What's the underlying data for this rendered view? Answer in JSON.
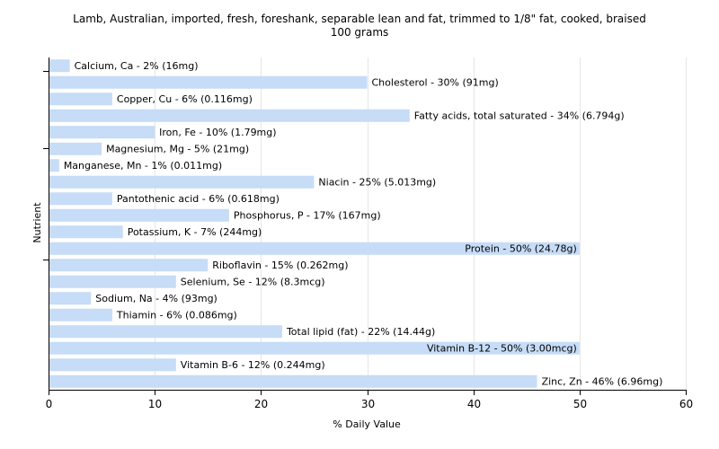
{
  "chart_data": {
    "type": "bar",
    "orientation": "horizontal",
    "title": "Lamb, Australian, imported, fresh, foreshank, separable lean and fat, trimmed to 1/8\" fat, cooked, braised",
    "subtitle": "100 grams",
    "xlabel": "% Daily Value",
    "ylabel": "Nutrient",
    "xlim": [
      0,
      60
    ],
    "x_ticks": [
      0,
      10,
      20,
      30,
      40,
      50,
      60
    ],
    "grid": true,
    "bar_color": "#c6dcf7",
    "categories": [
      "Calcium, Ca",
      "Cholesterol",
      "Copper, Cu",
      "Fatty acids, total saturated",
      "Iron, Fe",
      "Magnesium, Mg",
      "Manganese, Mn",
      "Niacin",
      "Pantothenic acid",
      "Phosphorus, P",
      "Potassium, K",
      "Protein",
      "Riboflavin",
      "Selenium, Se",
      "Sodium, Na",
      "Thiamin",
      "Total lipid (fat)",
      "Vitamin B-12",
      "Vitamin B-6",
      "Zinc, Zn"
    ],
    "values": [
      2,
      30,
      6,
      34,
      10,
      5,
      1,
      25,
      6,
      17,
      7,
      50,
      15,
      12,
      4,
      6,
      22,
      50,
      12,
      46
    ],
    "labels": [
      "Calcium, Ca - 2% (16mg)",
      "Cholesterol - 30% (91mg)",
      "Copper, Cu - 6% (0.116mg)",
      "Fatty acids, total saturated - 34% (6.794g)",
      "Iron, Fe - 10% (1.79mg)",
      "Magnesium, Mg - 5% (21mg)",
      "Manganese, Mn - 1% (0.011mg)",
      "Niacin - 25% (5.013mg)",
      "Pantothenic acid - 6% (0.618mg)",
      "Phosphorus, P - 17% (167mg)",
      "Potassium, K - 7% (244mg)",
      "Protein - 50% (24.78g)",
      "Riboflavin - 15% (0.262mg)",
      "Selenium, Se - 12% (8.3mcg)",
      "Sodium, Na - 4% (93mg)",
      "Thiamin - 6% (0.086mg)",
      "Total lipid (fat) - 22% (14.44g)",
      "Vitamin B-12 - 50% (3.00mcg)",
      "Vitamin B-6 - 12% (0.244mg)",
      "Zinc, Zn - 46% (6.96mg)"
    ]
  }
}
